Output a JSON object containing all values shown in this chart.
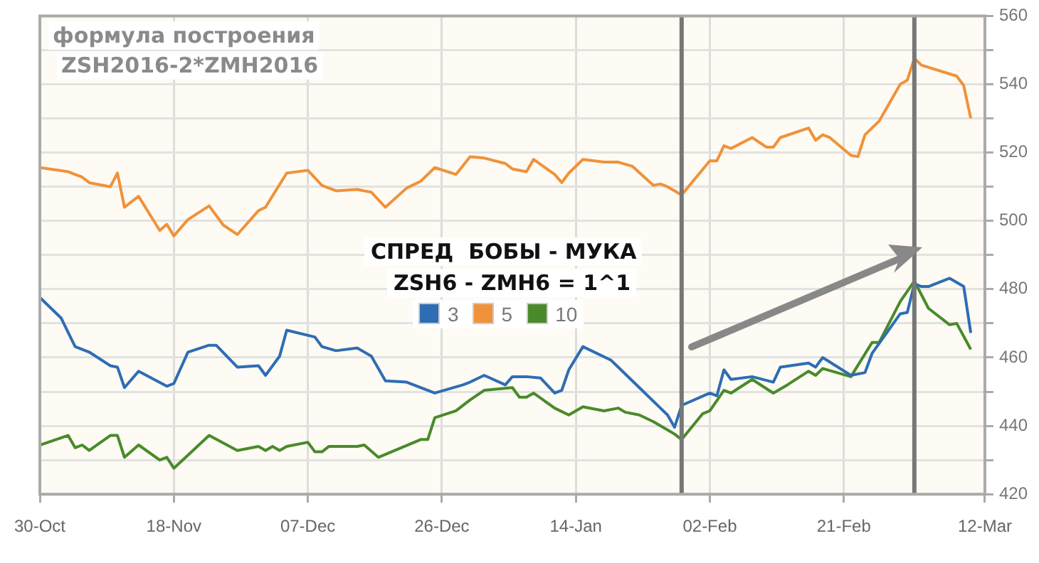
{
  "chart_data": {
    "type": "line",
    "title": "СПРЕД  БОБЫ - МУКА",
    "subtitle": "ZSH6 - ZMH6 = 1^1",
    "annotations": [
      "формула построения",
      "ZSH2016-2*ZMH2016"
    ],
    "xlim": [
      "2015-10-30",
      "2016-03-12"
    ],
    "xticks": [
      {
        "value": "2015-10-30",
        "label": "30-Oct"
      },
      {
        "value": "2015-11-18",
        "label": "18-Nov"
      },
      {
        "value": "2015-12-07",
        "label": "07-Dec"
      },
      {
        "value": "2015-12-26",
        "label": "26-Dec"
      },
      {
        "value": "2016-01-14",
        "label": "14-Jan"
      },
      {
        "value": "2016-02-02",
        "label": "02-Feb"
      },
      {
        "value": "2016-02-21",
        "label": "21-Feb"
      },
      {
        "value": "2016-03-12",
        "label": "12-Mar"
      }
    ],
    "ylim": [
      420,
      560
    ],
    "yticks": [
      420,
      {
        "value": 430,
        "label": null
      },
      440,
      {
        "value": 450,
        "label": null
      },
      460,
      {
        "value": 470,
        "label": null
      },
      480,
      {
        "value": 490,
        "label": null
      },
      500,
      {
        "value": 510,
        "label": null
      },
      520,
      {
        "value": 530,
        "label": null
      },
      540,
      {
        "value": 550,
        "label": null
      },
      560
    ],
    "grid": true,
    "legend": "center",
    "ref_lines": [
      {
        "axis": "x",
        "value": "2016-01-29",
        "color": "#777777"
      },
      {
        "axis": "x",
        "value": "2016-03-02",
        "color": "#777777"
      }
    ],
    "series": [
      {
        "name": "3",
        "color": "#2e6db4",
        "x": [
          "2015-10-30",
          "2015-11-02",
          "2015-11-04",
          "2015-11-06",
          "2015-11-09",
          "2015-11-10",
          "2015-11-11",
          "2015-11-13",
          "2015-11-17",
          "2015-11-18",
          "2015-11-20",
          "2015-11-23",
          "2015-11-24",
          "2015-11-27",
          "2015-11-30",
          "2015-12-01",
          "2015-12-03",
          "2015-12-04",
          "2015-12-08",
          "2015-12-09",
          "2015-12-11",
          "2015-12-14",
          "2015-12-16",
          "2015-12-18",
          "2015-12-21",
          "2015-12-25",
          "2015-12-29",
          "2015-12-30",
          "2016-01-01",
          "2016-01-04",
          "2016-01-05",
          "2016-01-07",
          "2016-01-09",
          "2016-01-11",
          "2016-01-12",
          "2016-01-13",
          "2016-01-15",
          "2016-01-19",
          "2016-01-21",
          "2016-01-23",
          "2016-01-26",
          "2016-01-27",
          "2016-01-28",
          "2016-01-29",
          "2016-02-02",
          "2016-02-03",
          "2016-02-04",
          "2016-02-05",
          "2016-02-08",
          "2016-02-11",
          "2016-02-12",
          "2016-02-16",
          "2016-02-17",
          "2016-02-18",
          "2016-02-22",
          "2016-02-24",
          "2016-02-25",
          "2016-02-29",
          "2016-03-01",
          "2016-03-02",
          "2016-03-03",
          "2016-03-04",
          "2016-03-07",
          "2016-03-09",
          "2016-03-10"
        ],
        "values": [
          477.6,
          471.6,
          463.2,
          461.6,
          457.6,
          457.2,
          451.2,
          456,
          451.6,
          452.4,
          461.6,
          463.6,
          463.6,
          457.2,
          457.6,
          454.8,
          460.4,
          468,
          466,
          463.2,
          462,
          462.8,
          460.4,
          453.2,
          452.8,
          449.6,
          452,
          452.8,
          454.8,
          452,
          454.4,
          454.4,
          454,
          449.6,
          450.4,
          456.4,
          463.2,
          459.2,
          455.2,
          451.2,
          445.2,
          443.2,
          439.6,
          446,
          449.6,
          448.8,
          456.4,
          453.6,
          454.4,
          452.8,
          457.2,
          458.4,
          457.2,
          460,
          454.8,
          455.6,
          461.2,
          472.8,
          473.2,
          481.6,
          480.8,
          480.8,
          483.2,
          480.8,
          467.2
        ]
      },
      {
        "name": "5",
        "color": "#f0923a",
        "x": [
          "2015-10-30",
          "2015-11-03",
          "2015-11-04",
          "2015-11-05",
          "2015-11-06",
          "2015-11-09",
          "2015-11-10",
          "2015-11-11",
          "2015-11-13",
          "2015-11-16",
          "2015-11-17",
          "2015-11-18",
          "2015-11-20",
          "2015-11-23",
          "2015-11-25",
          "2015-11-27",
          "2015-11-30",
          "2015-12-01",
          "2015-12-04",
          "2015-12-07",
          "2015-12-09",
          "2015-12-11",
          "2015-12-14",
          "2015-12-16",
          "2015-12-18",
          "2015-12-21",
          "2015-12-23",
          "2015-12-25",
          "2015-12-28",
          "2015-12-30",
          "2016-01-01",
          "2016-01-04",
          "2016-01-05",
          "2016-01-07",
          "2016-01-08",
          "2016-01-11",
          "2016-01-12",
          "2016-01-13",
          "2016-01-15",
          "2016-01-18",
          "2016-01-20",
          "2016-01-22",
          "2016-01-25",
          "2016-01-26",
          "2016-01-27",
          "2016-01-29",
          "2016-02-02",
          "2016-02-03",
          "2016-02-04",
          "2016-02-05",
          "2016-02-08",
          "2016-02-10",
          "2016-02-11",
          "2016-02-12",
          "2016-02-16",
          "2016-02-17",
          "2016-02-18",
          "2016-02-19",
          "2016-02-22",
          "2016-02-23",
          "2016-02-24",
          "2016-02-26",
          "2016-02-29",
          "2016-03-01",
          "2016-03-02",
          "2016-03-03",
          "2016-03-08",
          "2016-03-09",
          "2016-03-10"
        ],
        "values": [
          515.6,
          514.4,
          513.6,
          512.8,
          511.2,
          510,
          514,
          504,
          507.2,
          497.2,
          499,
          495.6,
          500.4,
          504.4,
          498.8,
          496,
          503,
          504,
          514,
          514.8,
          510.4,
          508.8,
          509.2,
          508.4,
          504,
          509.6,
          511.6,
          515.6,
          513.6,
          518.8,
          518.4,
          516.8,
          515.2,
          514.4,
          518,
          513.6,
          511.2,
          514,
          518,
          517.2,
          517.2,
          516,
          510.4,
          510.8,
          510,
          507.6,
          517.6,
          517.6,
          522,
          521.2,
          524.4,
          521.6,
          521.6,
          524.4,
          527.2,
          523.6,
          525.2,
          524.4,
          519.2,
          518.8,
          525.2,
          529.2,
          540,
          541.2,
          547.6,
          545.6,
          542.4,
          539.6,
          530
        ]
      },
      {
        "name": "10",
        "color": "#4a8a2a",
        "x": [
          "2015-10-30",
          "2015-11-03",
          "2015-11-04",
          "2015-11-05",
          "2015-11-06",
          "2015-11-09",
          "2015-11-10",
          "2015-11-11",
          "2015-11-13",
          "2015-11-16",
          "2015-11-17",
          "2015-11-18",
          "2015-11-23",
          "2015-11-27",
          "2015-11-30",
          "2015-12-01",
          "2015-12-02",
          "2015-12-03",
          "2015-12-04",
          "2015-12-07",
          "2015-12-08",
          "2015-12-09",
          "2015-12-10",
          "2015-12-14",
          "2015-12-15",
          "2015-12-17",
          "2015-12-23",
          "2015-12-24",
          "2015-12-25",
          "2015-12-28",
          "2015-12-30",
          "2016-01-01",
          "2016-01-05",
          "2016-01-06",
          "2016-01-07",
          "2016-01-08",
          "2016-01-11",
          "2016-01-13",
          "2016-01-15",
          "2016-01-18",
          "2016-01-20",
          "2016-01-21",
          "2016-01-23",
          "2016-01-25",
          "2016-01-27",
          "2016-01-28",
          "2016-01-29",
          "2016-02-01",
          "2016-02-02",
          "2016-02-04",
          "2016-02-05",
          "2016-02-08",
          "2016-02-11",
          "2016-02-13",
          "2016-02-16",
          "2016-02-17",
          "2016-02-18",
          "2016-02-22",
          "2016-02-25",
          "2016-02-26",
          "2016-02-29",
          "2016-03-02",
          "2016-03-04",
          "2016-03-07",
          "2016-03-08",
          "2016-03-10"
        ],
        "values": [
          434.4,
          437.2,
          433.6,
          434.4,
          432.8,
          437.2,
          437.2,
          430.8,
          434.4,
          430,
          430.8,
          427.6,
          437.2,
          432.8,
          434,
          432.8,
          434,
          432.8,
          434,
          435.2,
          432.4,
          432.4,
          434,
          434,
          434.4,
          430.8,
          436,
          436,
          442.4,
          444.4,
          447.6,
          450.4,
          451.2,
          448.4,
          448.4,
          449.6,
          445.2,
          443.2,
          445.6,
          444.4,
          445.2,
          444,
          443.2,
          441.2,
          438.8,
          437.6,
          436,
          443.6,
          444.4,
          450.4,
          449.6,
          453.6,
          449.6,
          452,
          456,
          454.8,
          456.8,
          454.4,
          464.4,
          464.4,
          476.4,
          482.4,
          474.4,
          469.6,
          470,
          462.4
        ]
      }
    ]
  }
}
